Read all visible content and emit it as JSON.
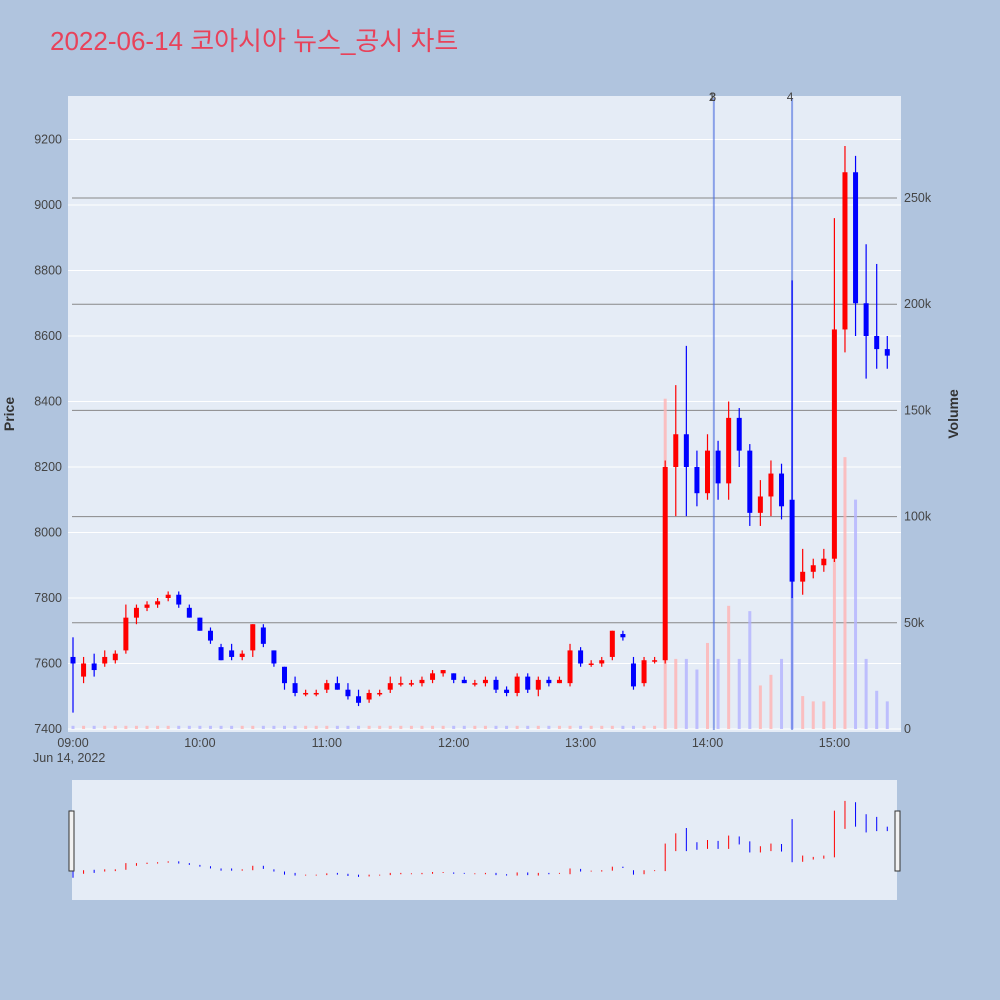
{
  "chart_data": {
    "type": "candlestick",
    "title": "2022-06-14 코아시아 뉴스_공시 차트",
    "date_label": "Jun 14, 2022",
    "yaxis_price": {
      "title": "Price",
      "range": [
        7350,
        9300
      ],
      "ticks": [
        "7400",
        "7600",
        "7800",
        "8000",
        "8200",
        "8400",
        "8600",
        "8800",
        "9000",
        "9200"
      ]
    },
    "yaxis_volume": {
      "title": "Volume",
      "range": [
        0,
        300000
      ],
      "ticks": [
        "0",
        "50k",
        "100k",
        "150k",
        "200k",
        "250k"
      ]
    },
    "xaxis": {
      "ticks": [
        "09:00",
        "10:00",
        "11:00",
        "12:00",
        "13:00",
        "14:00",
        "15:00"
      ]
    },
    "colors": {
      "up": "#ff0000",
      "down": "#0000ff",
      "volume_up": "#ffb3b3",
      "volume_down": "#b3b3ff",
      "news_line": "#4d6fe0"
    },
    "news_markers": [
      {
        "time": "14:03",
        "labels": [
          "1",
          "2",
          "3"
        ]
      },
      {
        "time": "14:40",
        "labels": [
          "4"
        ]
      }
    ],
    "horizontal_lines_volume": [
      50000,
      100000,
      150000,
      200000,
      250000
    ],
    "candles_sampled": [
      [
        "09:00",
        7620,
        7680,
        7450,
        7600
      ],
      [
        "09:05",
        7560,
        7620,
        7540,
        7600
      ],
      [
        "09:10",
        7600,
        7630,
        7560,
        7580
      ],
      [
        "09:15",
        7600,
        7640,
        7590,
        7620
      ],
      [
        "09:20",
        7610,
        7640,
        7600,
        7630
      ],
      [
        "09:25",
        7640,
        7780,
        7630,
        7740
      ],
      [
        "09:30",
        7740,
        7780,
        7720,
        7770
      ],
      [
        "09:35",
        7770,
        7790,
        7760,
        7780
      ],
      [
        "09:40",
        7780,
        7800,
        7770,
        7790
      ],
      [
        "09:45",
        7800,
        7820,
        7790,
        7810
      ],
      [
        "09:50",
        7810,
        7820,
        7770,
        7780
      ],
      [
        "09:55",
        7770,
        7780,
        7740,
        7740
      ],
      [
        "10:00",
        7740,
        7740,
        7700,
        7700
      ],
      [
        "10:05",
        7700,
        7710,
        7660,
        7670
      ],
      [
        "10:10",
        7650,
        7660,
        7610,
        7610
      ],
      [
        "10:15",
        7640,
        7660,
        7610,
        7620
      ],
      [
        "10:20",
        7620,
        7640,
        7610,
        7630
      ],
      [
        "10:25",
        7640,
        7720,
        7620,
        7720
      ],
      [
        "10:30",
        7710,
        7720,
        7650,
        7660
      ],
      [
        "10:35",
        7640,
        7640,
        7590,
        7600
      ],
      [
        "10:40",
        7590,
        7590,
        7520,
        7540
      ],
      [
        "10:45",
        7540,
        7560,
        7500,
        7510
      ],
      [
        "10:50",
        7510,
        7520,
        7500,
        7510
      ],
      [
        "10:55",
        7510,
        7520,
        7500,
        7510
      ],
      [
        "11:00",
        7520,
        7550,
        7510,
        7540
      ],
      [
        "11:05",
        7540,
        7560,
        7520,
        7520
      ],
      [
        "11:10",
        7520,
        7540,
        7490,
        7500
      ],
      [
        "11:15",
        7500,
        7520,
        7470,
        7480
      ],
      [
        "11:20",
        7490,
        7520,
        7480,
        7510
      ],
      [
        "11:25",
        7510,
        7520,
        7500,
        7510
      ],
      [
        "11:30",
        7520,
        7560,
        7510,
        7540
      ],
      [
        "11:35",
        7540,
        7560,
        7530,
        7540
      ],
      [
        "11:40",
        7540,
        7550,
        7530,
        7540
      ],
      [
        "11:45",
        7540,
        7560,
        7530,
        7550
      ],
      [
        "11:50",
        7550,
        7580,
        7540,
        7570
      ],
      [
        "11:55",
        7570,
        7580,
        7560,
        7580
      ],
      [
        "12:00",
        7570,
        7570,
        7540,
        7550
      ],
      [
        "12:05",
        7550,
        7560,
        7540,
        7540
      ],
      [
        "12:10",
        7540,
        7550,
        7530,
        7540
      ],
      [
        "12:15",
        7540,
        7560,
        7530,
        7550
      ],
      [
        "12:20",
        7550,
        7560,
        7510,
        7520
      ],
      [
        "12:25",
        7520,
        7530,
        7500,
        7510
      ],
      [
        "12:30",
        7510,
        7570,
        7500,
        7560
      ],
      [
        "12:35",
        7560,
        7570,
        7510,
        7520
      ],
      [
        "12:40",
        7520,
        7560,
        7500,
        7550
      ],
      [
        "12:45",
        7550,
        7560,
        7530,
        7540
      ],
      [
        "12:50",
        7540,
        7560,
        7540,
        7550
      ],
      [
        "12:55",
        7540,
        7660,
        7530,
        7640
      ],
      [
        "13:00",
        7640,
        7650,
        7590,
        7600
      ],
      [
        "13:05",
        7600,
        7610,
        7590,
        7600
      ],
      [
        "13:10",
        7600,
        7620,
        7590,
        7610
      ],
      [
        "13:15",
        7620,
        7700,
        7610,
        7700
      ],
      [
        "13:20",
        7690,
        7700,
        7670,
        7680
      ],
      [
        "13:25",
        7600,
        7620,
        7520,
        7530
      ],
      [
        "13:30",
        7540,
        7620,
        7530,
        7610
      ],
      [
        "13:35",
        7610,
        7620,
        7600,
        7610
      ],
      [
        "13:40",
        7610,
        8220,
        7600,
        8200
      ],
      [
        "13:45",
        8200,
        8450,
        8050,
        8300
      ],
      [
        "13:50",
        8300,
        8570,
        8050,
        8200
      ],
      [
        "13:55",
        8200,
        8250,
        8080,
        8120
      ],
      [
        "14:00",
        8120,
        8300,
        8100,
        8250
      ],
      [
        "14:05",
        8250,
        8280,
        8100,
        8150
      ],
      [
        "14:10",
        8150,
        8400,
        8100,
        8350
      ],
      [
        "14:15",
        8350,
        8380,
        8200,
        8250
      ],
      [
        "14:20",
        8250,
        8270,
        8020,
        8060
      ],
      [
        "14:25",
        8060,
        8160,
        8020,
        8110
      ],
      [
        "14:30",
        8110,
        8220,
        8050,
        8180
      ],
      [
        "14:35",
        8180,
        8210,
        8040,
        8080
      ],
      [
        "14:40",
        8100,
        8770,
        7800,
        7850
      ],
      [
        "14:45",
        7850,
        7950,
        7810,
        7880
      ],
      [
        "14:50",
        7880,
        7920,
        7860,
        7900
      ],
      [
        "14:55",
        7900,
        7950,
        7880,
        7920
      ],
      [
        "15:00",
        7920,
        8960,
        7910,
        8620
      ],
      [
        "15:05",
        8620,
        9180,
        8550,
        9100
      ],
      [
        "15:10",
        9100,
        9150,
        8600,
        8700
      ],
      [
        "15:15",
        8700,
        8880,
        8470,
        8600
      ],
      [
        "15:20",
        8600,
        8820,
        8500,
        8560
      ],
      [
        "15:25",
        8560,
        8600,
        8500,
        8540
      ]
    ]
  }
}
